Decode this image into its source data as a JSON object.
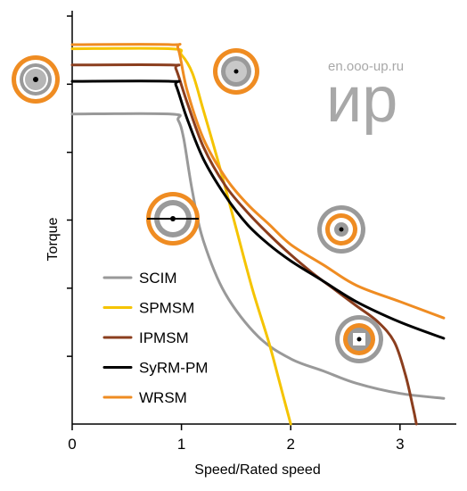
{
  "watermark": {
    "url": "en.ooo-up.ru",
    "logo": "ир"
  },
  "chart_data": {
    "type": "line",
    "xlabel": "Speed/Rated speed",
    "ylabel": "Torque",
    "xlim": [
      0,
      3.45
    ],
    "ylim": [
      0,
      1
    ],
    "x_ticks": [
      0,
      1,
      2,
      3
    ],
    "x_tick_labels": [
      "0",
      "1",
      "2",
      "3"
    ],
    "y_ticks": [
      0.166,
      0.333,
      0.5,
      0.666,
      0.833,
      1.0
    ],
    "y_tick_labels": [
      "",
      "",
      "",
      "",
      "",
      ""
    ],
    "grid": false,
    "legend_position": "bottom-left",
    "series": [
      {
        "name": "SCIM",
        "color": "#999999",
        "points": [
          [
            0,
            0.76
          ],
          [
            0.9,
            0.76
          ],
          [
            0.97,
            0.745
          ],
          [
            1.02,
            0.7
          ],
          [
            1.1,
            0.57
          ],
          [
            1.2,
            0.45
          ],
          [
            1.4,
            0.32
          ],
          [
            1.7,
            0.215
          ],
          [
            2.0,
            0.16
          ],
          [
            2.3,
            0.13
          ],
          [
            2.6,
            0.1
          ],
          [
            3.0,
            0.075
          ],
          [
            3.4,
            0.063
          ]
        ]
      },
      {
        "name": "SPMSM",
        "color": "#f5c400",
        "points": [
          [
            0,
            0.92
          ],
          [
            0.9,
            0.92
          ],
          [
            1.0,
            0.905
          ],
          [
            1.1,
            0.86
          ],
          [
            1.2,
            0.77
          ],
          [
            1.35,
            0.63
          ],
          [
            1.5,
            0.48
          ],
          [
            1.65,
            0.33
          ],
          [
            1.8,
            0.2
          ],
          [
            1.9,
            0.1
          ],
          [
            2.0,
            0.0
          ]
        ]
      },
      {
        "name": "IPMSM",
        "color": "#8b3e1e",
        "points": [
          [
            0,
            0.88
          ],
          [
            0.9,
            0.88
          ],
          [
            0.95,
            0.87
          ],
          [
            1.05,
            0.79
          ],
          [
            1.2,
            0.68
          ],
          [
            1.4,
            0.585
          ],
          [
            1.6,
            0.52
          ],
          [
            1.8,
            0.465
          ],
          [
            2.0,
            0.415
          ],
          [
            2.2,
            0.37
          ],
          [
            2.4,
            0.33
          ],
          [
            2.6,
            0.29
          ],
          [
            2.8,
            0.25
          ],
          [
            2.95,
            0.2
          ],
          [
            3.05,
            0.12
          ],
          [
            3.12,
            0.04
          ],
          [
            3.15,
            0.0
          ]
        ]
      },
      {
        "name": "SyRM-PM",
        "color": "#000000",
        "points": [
          [
            0,
            0.84
          ],
          [
            0.9,
            0.84
          ],
          [
            0.95,
            0.83
          ],
          [
            1.05,
            0.75
          ],
          [
            1.2,
            0.65
          ],
          [
            1.4,
            0.56
          ],
          [
            1.6,
            0.49
          ],
          [
            1.8,
            0.44
          ],
          [
            2.0,
            0.4
          ],
          [
            2.3,
            0.35
          ],
          [
            2.6,
            0.3
          ],
          [
            3.0,
            0.25
          ],
          [
            3.4,
            0.21
          ]
        ]
      },
      {
        "name": "WRSM",
        "color": "#ef8c22",
        "points": [
          [
            0,
            0.93
          ],
          [
            0.9,
            0.93
          ],
          [
            0.97,
            0.92
          ],
          [
            1.05,
            0.82
          ],
          [
            1.2,
            0.7
          ],
          [
            1.4,
            0.605
          ],
          [
            1.6,
            0.54
          ],
          [
            1.8,
            0.49
          ],
          [
            2.0,
            0.44
          ],
          [
            2.3,
            0.39
          ],
          [
            2.6,
            0.34
          ],
          [
            3.0,
            0.3
          ],
          [
            3.4,
            0.26
          ]
        ]
      }
    ]
  }
}
